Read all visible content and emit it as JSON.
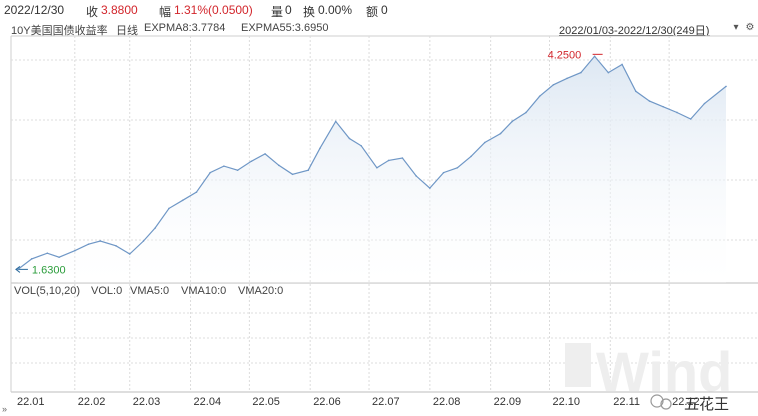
{
  "header": {
    "date": "2022/12/30",
    "close_label": "收",
    "close_value": "3.8800",
    "change_label": "幅",
    "change_value": "1.31%(0.0500)",
    "volume_label": "量",
    "volume_value": "0",
    "turnover_label": "换",
    "turnover_value": "0.00%",
    "amount_label": "额",
    "amount_value": "0"
  },
  "indicator_row": {
    "security_name": "10Y美国国债收益率",
    "period": "日线",
    "ema8": "EXPMA8:3.7784",
    "ema55": "EXPMA55:3.6950",
    "date_range": "2022/01/03-2022/12/30(249日)",
    "dropdown_icon": "chevron-down-icon",
    "settings_icon": "gear-icon"
  },
  "volume_panel": {
    "vol": "VOL(5,10,20)",
    "vol_value": "VOL:0",
    "vma5": "VMA5:0",
    "vma10": "VMA10:0",
    "vma20": "VMA20:0"
  },
  "watermark": {
    "brand": "Wind",
    "account": "五花王"
  },
  "colors": {
    "line": "#6f97c6",
    "area_top": "#dbe6f2",
    "red": "#d2252b",
    "green": "#2a9c3a",
    "grid": "#dcdcdc"
  },
  "chart_data": {
    "type": "area",
    "title": "",
    "xlabel": "",
    "ylabel": "",
    "x_tick_labels": [
      "22.01",
      "22.02",
      "22.03",
      "22.04",
      "22.05",
      "22.06",
      "22.07",
      "22.08",
      "22.09",
      "22.10",
      "22.11",
      "22.12"
    ],
    "ylim": [
      1.5,
      4.5
    ],
    "grid": true,
    "annotations": [
      {
        "label": "1.6300",
        "x": "2022-01-03",
        "y": 1.63,
        "color": "green"
      },
      {
        "label": "4.2500",
        "x": "2022-10-24",
        "y": 4.25,
        "color": "red"
      }
    ],
    "series": [
      {
        "x": [
          "2022-01-03",
          "2022-01-10",
          "2022-01-18",
          "2022-01-24",
          "2022-02-01",
          "2022-02-08",
          "2022-02-14",
          "2022-02-22",
          "2022-03-01",
          "2022-03-08",
          "2022-03-14",
          "2022-03-21",
          "2022-03-28",
          "2022-04-04",
          "2022-04-11",
          "2022-04-18",
          "2022-04-25",
          "2022-05-02",
          "2022-05-09",
          "2022-05-16",
          "2022-05-23",
          "2022-05-31",
          "2022-06-06",
          "2022-06-14",
          "2022-06-21",
          "2022-06-27",
          "2022-07-05",
          "2022-07-11",
          "2022-07-18",
          "2022-07-25",
          "2022-08-01",
          "2022-08-08",
          "2022-08-15",
          "2022-08-22",
          "2022-08-29",
          "2022-09-06",
          "2022-09-12",
          "2022-09-19",
          "2022-09-26",
          "2022-10-03",
          "2022-10-10",
          "2022-10-17",
          "2022-10-24",
          "2022-10-31",
          "2022-11-07",
          "2022-11-14",
          "2022-11-21",
          "2022-11-28",
          "2022-12-05",
          "2022-12-12",
          "2022-12-19",
          "2022-12-30"
        ],
        "values": [
          1.63,
          1.76,
          1.83,
          1.78,
          1.86,
          1.94,
          1.98,
          1.92,
          1.82,
          1.98,
          2.14,
          2.38,
          2.48,
          2.58,
          2.82,
          2.9,
          2.85,
          2.96,
          3.05,
          2.91,
          2.8,
          2.85,
          3.12,
          3.45,
          3.24,
          3.15,
          2.88,
          2.97,
          3.0,
          2.78,
          2.63,
          2.82,
          2.88,
          3.02,
          3.19,
          3.3,
          3.45,
          3.56,
          3.76,
          3.9,
          3.98,
          4.05,
          4.25,
          4.05,
          4.15,
          3.82,
          3.7,
          3.63,
          3.56,
          3.48,
          3.67,
          3.88
        ]
      }
    ]
  }
}
